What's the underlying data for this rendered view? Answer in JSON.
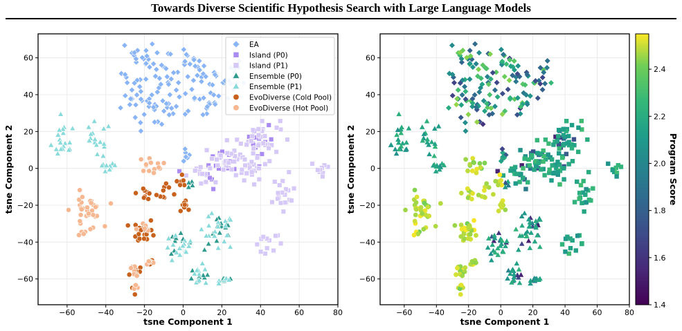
{
  "header": {
    "title": "Towards Diverse Scientific Hypothesis Search with Large Language Models"
  },
  "chart_data": [
    {
      "type": "scatter",
      "xlabel": "tsne Component 1",
      "ylabel": "tsne Component 2",
      "xlim": [
        -75,
        80
      ],
      "ylim": [
        -74,
        73
      ],
      "xticks": [
        -60,
        -40,
        -20,
        0,
        20,
        40,
        60,
        80
      ],
      "yticks": [
        -60,
        -40,
        -20,
        0,
        20,
        40,
        60
      ],
      "grid": true,
      "legend_position": "top-right",
      "series": [
        {
          "name": "EA",
          "marker": "diamond",
          "color": "#89b4f5",
          "clusters": [
            [
              -20,
              36,
              6,
              6,
              26
            ],
            [
              -18,
              52,
              7,
              7,
              22
            ],
            [
              -22,
              63,
              4,
              3,
              10
            ],
            [
              -11,
              30,
              4,
              4,
              10
            ],
            [
              -3,
              36,
              5,
              5,
              10
            ],
            [
              2,
              60,
              3,
              3,
              8
            ],
            [
              8,
              45,
              6,
              6,
              18
            ],
            [
              20,
              48,
              6,
              7,
              24
            ],
            [
              0,
              9,
              3,
              3,
              8
            ],
            [
              -8,
              50,
              4,
              4,
              8
            ],
            [
              13,
              34,
              3,
              4,
              8
            ]
          ]
        },
        {
          "name": "Island (P0)",
          "marker": "square",
          "color": "#a98af1",
          "clusters": [
            [
              24,
              5,
              5,
              4,
              12
            ],
            [
              37,
              16,
              5,
              5,
              10
            ],
            [
              12,
              -5,
              4,
              3,
              6
            ],
            [
              40,
              5,
              3,
              3,
              5
            ]
          ]
        },
        {
          "name": "Island (P1)",
          "marker": "square",
          "color": "#d6c9f7",
          "clusters": [
            [
              23,
              4,
              6,
              5,
              30
            ],
            [
              40,
              17,
              5,
              5,
              28
            ],
            [
              38,
              3,
              4,
              3,
              12
            ],
            [
              52,
              -16,
              3,
              6,
              20
            ],
            [
              72,
              0,
              3,
              2,
              10
            ],
            [
              44,
              -41,
              4,
              2,
              12
            ],
            [
              8,
              -3,
              4,
              3,
              10
            ],
            [
              30,
              -1,
              3,
              3,
              8
            ]
          ]
        },
        {
          "name": "Ensemble (P0)",
          "marker": "triangle",
          "color": "#2f9a8e",
          "clusters": [
            [
              -2,
              -41,
              3,
              3,
              10
            ],
            [
              19,
              -35,
              4,
              5,
              14
            ],
            [
              9,
              -58,
              3,
              3,
              8
            ],
            [
              22,
              -60,
              2,
              1,
              5
            ],
            [
              3,
              -8,
              2,
              2,
              5
            ]
          ]
        },
        {
          "name": "Ensemble (P1)",
          "marker": "triangle",
          "color": "#89dada",
          "clusters": [
            [
              -62,
              13,
              3,
              5,
              16
            ],
            [
              -45,
              15,
              4,
              5,
              16
            ],
            [
              -40,
              0,
              3,
              2,
              10
            ],
            [
              -2,
              -44,
              4,
              4,
              14
            ],
            [
              17,
              -35,
              5,
              5,
              20
            ],
            [
              9,
              -59,
              3,
              3,
              10
            ],
            [
              23,
              -60,
              2,
              1,
              5
            ],
            [
              -62,
              21,
              2,
              1,
              5
            ]
          ]
        },
        {
          "name": "EvoDiverse (Cold Pool)",
          "marker": "circle",
          "color": "#c8611c",
          "clusters": [
            [
              -20,
              -34,
              3,
              3,
              22
            ],
            [
              -20,
              -13,
              2,
              2,
              8
            ],
            [
              -10,
              -13,
              2,
              2,
              8
            ],
            [
              2,
              -19,
              2,
              2,
              8
            ],
            [
              -2,
              -10,
              2,
              2,
              5
            ],
            [
              -25,
              -55,
              2,
              2,
              8
            ],
            [
              -17,
              -51,
              2,
              1,
              5
            ],
            [
              -25,
              -66,
              1,
              1,
              3
            ],
            [
              -1,
              -5,
              1,
              1,
              3
            ]
          ]
        },
        {
          "name": "EvoDiverse (Hot Pool)",
          "marker": "circle",
          "color": "#f6b791",
          "clusters": [
            [
              -50,
              -23,
              4,
              5,
              30
            ],
            [
              -17,
              2,
              3,
              2,
              14
            ],
            [
              -52,
              -35,
              2,
              1,
              5
            ],
            [
              -25,
              -56,
              2,
              2,
              6
            ],
            [
              -18,
              -51,
              2,
              1,
              5
            ],
            [
              -25,
              -65,
              1,
              1,
              4
            ],
            [
              -20,
              -33,
              2,
              2,
              6
            ]
          ]
        }
      ]
    },
    {
      "type": "scatter",
      "xlabel": "tsne Component 1",
      "ylabel": "tsne Component 2",
      "xlim": [
        -75,
        80
      ],
      "ylim": [
        -74,
        73
      ],
      "xticks": [
        -60,
        -40,
        -20,
        0,
        20,
        40,
        60,
        80
      ],
      "yticks": [
        -60,
        -40,
        -20,
        0,
        20,
        40,
        60
      ],
      "grid": true,
      "colorbar": {
        "label": "Program Score",
        "range": [
          1.4,
          2.55
        ],
        "ticks": [
          1.4,
          1.6,
          1.8,
          2.0,
          2.2,
          2.4
        ],
        "colormap": "viridis"
      },
      "note_score_ranges": "point colors follow per-group score ranges"
    }
  ],
  "scores": {
    "EA": [
      1.6,
      2.45
    ],
    "Island (P0)": [
      1.45,
      2.2
    ],
    "Island (P1)": [
      2.05,
      2.3
    ],
    "Ensemble (P0)": [
      1.5,
      2.2
    ],
    "Ensemble (P1)": [
      2.05,
      2.25
    ],
    "EvoDiverse (Cold Pool)": [
      2.45,
      2.55
    ],
    "EvoDiverse (Hot Pool)": [
      2.4,
      2.55
    ]
  }
}
